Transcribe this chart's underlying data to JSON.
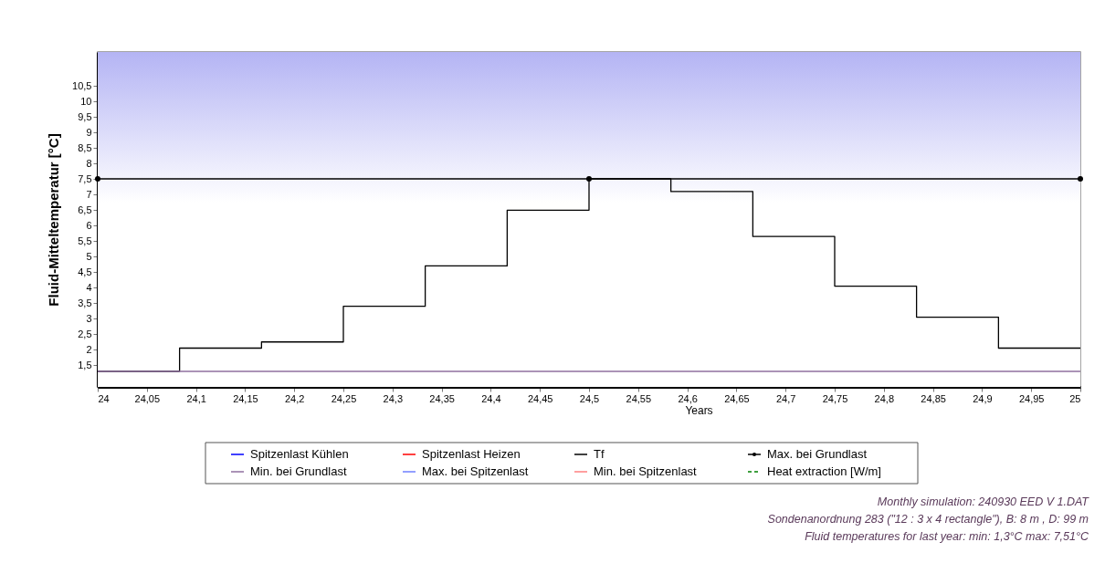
{
  "chart_data": {
    "type": "step",
    "xlabel": "Years",
    "ylabel": "Fluid-Mitteltemperatur [°C]",
    "xlim": [
      24,
      25
    ],
    "ylim": [
      0.8,
      11.6
    ],
    "xticks": [
      24,
      {
        "value": 24.05,
        "label": "24,05"
      },
      {
        "value": 24.1,
        "label": "24,1"
      },
      {
        "value": 24.15,
        "label": "24,15"
      },
      {
        "value": 24.2,
        "label": "24,2"
      },
      {
        "value": 24.25,
        "label": "24,25"
      },
      {
        "value": 24.3,
        "label": "24,3"
      },
      {
        "value": 24.35,
        "label": "24,35"
      },
      {
        "value": 24.4,
        "label": "24,4"
      },
      {
        "value": 24.45,
        "label": "24,45"
      },
      {
        "value": 24.5,
        "label": "24,5"
      },
      {
        "value": 24.55,
        "label": "24,55"
      },
      {
        "value": 24.6,
        "label": "24,6"
      },
      {
        "value": 24.65,
        "label": "24,65"
      },
      {
        "value": 24.7,
        "label": "24,7"
      },
      {
        "value": 24.75,
        "label": "24,75"
      },
      {
        "value": 24.8,
        "label": "24,8"
      },
      {
        "value": 24.85,
        "label": "24,85"
      },
      {
        "value": 24.9,
        "label": "24,9"
      },
      {
        "value": 24.95,
        "label": "24,95"
      },
      25
    ],
    "yticks": [
      {
        "value": 1.5,
        "label": "1,5"
      },
      2,
      {
        "value": 2.5,
        "label": "2,5"
      },
      3,
      {
        "value": 3.5,
        "label": "3,5"
      },
      4,
      {
        "value": 4.5,
        "label": "4,5"
      },
      5,
      {
        "value": 5.5,
        "label": "5,5"
      },
      6,
      {
        "value": 6.5,
        "label": "6,5"
      },
      7,
      {
        "value": 7.5,
        "label": "7,5"
      },
      8,
      {
        "value": 8.5,
        "label": "8,5"
      },
      9,
      {
        "value": 9.5,
        "label": "9,5"
      },
      10,
      {
        "value": 10.5,
        "label": "10,5"
      }
    ],
    "grid": false,
    "legend": "bottom",
    "series": [
      {
        "name": "Spitzenlast Kühlen",
        "color": "#0000ff",
        "type": "line"
      },
      {
        "name": "Spitzenlast Heizen",
        "color": "#ff0000",
        "type": "line"
      },
      {
        "name": "Tf",
        "color": "#000000",
        "type": "step",
        "x": [
          24,
          24.0833,
          24.1667,
          24.25,
          24.3333,
          24.4167,
          24.5,
          24.5833,
          24.6667,
          24.75,
          24.8333,
          24.9167,
          25
        ],
        "values": [
          1.3,
          2.05,
          2.25,
          3.4,
          4.7,
          6.5,
          7.51,
          7.1,
          5.65,
          4.05,
          3.05,
          2.05,
          2.05
        ]
      },
      {
        "name": "Max. bei Grundlast",
        "color": "#000000",
        "type": "line",
        "marker": "circle",
        "x": [
          24,
          24.5,
          25
        ],
        "values": [
          7.51,
          7.51,
          7.51
        ]
      },
      {
        "name": "Min. bei Grundlast",
        "color": "#8f6f9f",
        "type": "line",
        "x": [
          24,
          25
        ],
        "values": [
          1.3,
          1.3
        ]
      },
      {
        "name": "Max. bei Spitzenlast",
        "color": "#6f7fff",
        "type": "line"
      },
      {
        "name": "Min. bei Spitzenlast",
        "color": "#ff7f7f",
        "type": "line"
      },
      {
        "name": "Heat extraction [W/m]",
        "color": "#008000",
        "type": "line",
        "line_style": "dashed"
      }
    ],
    "annotations": [
      "Monthly simulation: 240930 EED V 1.DAT",
      "Sondenanordnung 283 (\"12 : 3 x 4 rectangle\"), B: 8 m , D: 99 m",
      "Fluid temperatures for last year: min: 1,3°C max: 7,51°C"
    ]
  }
}
